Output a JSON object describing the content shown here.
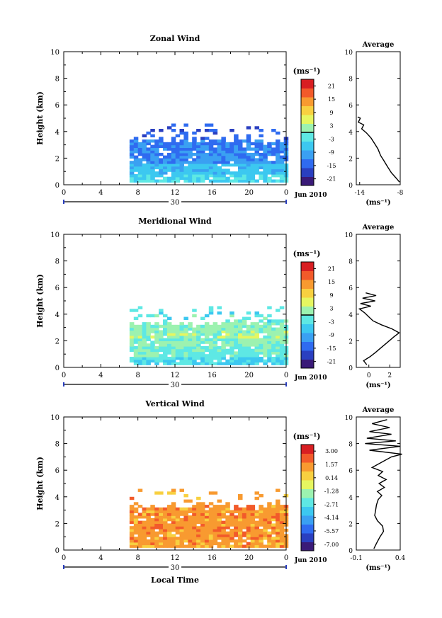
{
  "figure": {
    "xlabel": "Local Time",
    "date_label": "30",
    "month_label": "Jun 2010",
    "ylabel": "Height (km)",
    "unit_label": "(ms⁻¹)"
  },
  "chart_data": [
    {
      "type": "heatmap",
      "title": "Zonal Wind",
      "xlabel": "Local Time",
      "ylabel": "Height (km)",
      "x_ticks": [
        "0",
        "4",
        "8",
        "12",
        "16",
        "20",
        "0"
      ],
      "y_ticks": [
        "0",
        "2",
        "4",
        "6",
        "8",
        "10"
      ],
      "xlim": [
        0,
        24
      ],
      "ylim": [
        0,
        10
      ],
      "colorbar": {
        "unit": "(ms⁻¹)",
        "ticks": [
          "21",
          "15",
          "9",
          "3",
          "-3",
          "-9",
          "-15",
          "-21"
        ],
        "range": [
          -24,
          24
        ],
        "zero_line": 0
      },
      "data_extent": {
        "x": [
          7.1,
          24
        ],
        "y": [
          0.2,
          4.6
        ]
      },
      "value_profile": [
        {
          "h": 0.4,
          "v": -4
        },
        {
          "h": 1.0,
          "v": -7
        },
        {
          "h": 1.8,
          "v": -11
        },
        {
          "h": 2.4,
          "v": -12
        },
        {
          "h": 3.0,
          "v": -13
        },
        {
          "h": 3.6,
          "v": -15
        },
        {
          "h": 4.2,
          "v": -16
        }
      ],
      "average": {
        "title": "Average",
        "xlabel": "(ms⁻¹)",
        "x_ticks": [
          "-14",
          "-8"
        ],
        "xlim": [
          -14.5,
          -8
        ],
        "y_ticks": [
          "0",
          "2",
          "4",
          "6",
          "8",
          "10"
        ],
        "ylim": [
          0,
          10
        ],
        "profile": [
          {
            "h": 0.2,
            "v": -8.1
          },
          {
            "h": 0.5,
            "v": -8.6
          },
          {
            "h": 0.9,
            "v": -9.3
          },
          {
            "h": 1.3,
            "v": -9.8
          },
          {
            "h": 1.8,
            "v": -10.4
          },
          {
            "h": 2.2,
            "v": -10.9
          },
          {
            "h": 2.7,
            "v": -11.3
          },
          {
            "h": 3.1,
            "v": -11.8
          },
          {
            "h": 3.5,
            "v": -12.3
          },
          {
            "h": 3.9,
            "v": -13.0
          },
          {
            "h": 4.2,
            "v": -13.7
          },
          {
            "h": 4.5,
            "v": -13.4
          },
          {
            "h": 4.7,
            "v": -14.2
          },
          {
            "h": 5.0,
            "v": -13.9
          },
          {
            "h": 5.1,
            "v": -14.3
          }
        ]
      }
    },
    {
      "type": "heatmap",
      "title": "Meridional Wind",
      "xlabel": "Local Time",
      "ylabel": "Height (km)",
      "x_ticks": [
        "0",
        "4",
        "8",
        "12",
        "16",
        "20",
        "0"
      ],
      "y_ticks": [
        "0",
        "2",
        "4",
        "6",
        "8",
        "10"
      ],
      "xlim": [
        0,
        24
      ],
      "ylim": [
        0,
        10
      ],
      "colorbar": {
        "unit": "(ms⁻¹)",
        "ticks": [
          "21",
          "15",
          "9",
          "3",
          "-3",
          "-9",
          "-15",
          "-21"
        ],
        "range": [
          -24,
          24
        ],
        "zero_line": 0
      },
      "data_extent": {
        "x": [
          7.1,
          24
        ],
        "y": [
          0.2,
          4.6
        ]
      },
      "value_profile": [
        {
          "h": 0.4,
          "v": -4
        },
        {
          "h": 1.0,
          "v": -1
        },
        {
          "h": 1.8,
          "v": 1
        },
        {
          "h": 2.4,
          "v": 2
        },
        {
          "h": 3.0,
          "v": 1
        },
        {
          "h": 3.6,
          "v": -2
        },
        {
          "h": 4.2,
          "v": -3
        }
      ],
      "average": {
        "title": "Average",
        "xlabel": "(ms⁻¹)",
        "x_ticks": [
          "0",
          "2"
        ],
        "xlim": [
          -1.2,
          3
        ],
        "y_ticks": [
          "0",
          "2",
          "4",
          "6",
          "8",
          "10"
        ],
        "ylim": [
          0,
          10
        ],
        "profile": [
          {
            "h": 0.2,
            "v": -0.2
          },
          {
            "h": 0.5,
            "v": -0.5
          },
          {
            "h": 0.8,
            "v": 0.1
          },
          {
            "h": 1.1,
            "v": 0.6
          },
          {
            "h": 1.5,
            "v": 1.2
          },
          {
            "h": 1.9,
            "v": 1.8
          },
          {
            "h": 2.3,
            "v": 2.4
          },
          {
            "h": 2.6,
            "v": 2.9
          },
          {
            "h": 2.9,
            "v": 2.2
          },
          {
            "h": 3.2,
            "v": 1.2
          },
          {
            "h": 3.5,
            "v": 0.4
          },
          {
            "h": 3.8,
            "v": 0.0
          },
          {
            "h": 4.1,
            "v": -0.4
          },
          {
            "h": 4.4,
            "v": -0.9
          },
          {
            "h": 4.6,
            "v": 0.2
          },
          {
            "h": 4.8,
            "v": -0.8
          },
          {
            "h": 5.0,
            "v": 0.6
          },
          {
            "h": 5.2,
            "v": -0.6
          },
          {
            "h": 5.4,
            "v": 0.7
          },
          {
            "h": 5.6,
            "v": -0.3
          }
        ]
      }
    },
    {
      "type": "heatmap",
      "title": "Vertical Wind",
      "xlabel": "Local Time",
      "ylabel": "Height (km)",
      "x_ticks": [
        "0",
        "4",
        "8",
        "12",
        "16",
        "20",
        "0"
      ],
      "y_ticks": [
        "0",
        "2",
        "4",
        "6",
        "8",
        "10"
      ],
      "xlim": [
        0,
        24
      ],
      "ylim": [
        0,
        10
      ],
      "colorbar": {
        "unit": "(ms⁻¹)",
        "ticks": [
          "3.00",
          "1.57",
          "0.14",
          "-1.28",
          "-2.71",
          "-4.14",
          "-5.57",
          "-7.00"
        ],
        "range": [
          -7.7,
          3.7
        ],
        "zero_line": null
      },
      "data_extent": {
        "x": [
          7.1,
          24
        ],
        "y": [
          0.2,
          4.6
        ]
      },
      "value_profile": [
        {
          "h": 0.4,
          "v": 1.2
        },
        {
          "h": 1.0,
          "v": 1.3
        },
        {
          "h": 1.8,
          "v": 1.5
        },
        {
          "h": 2.4,
          "v": 1.4
        },
        {
          "h": 3.0,
          "v": 1.3
        },
        {
          "h": 3.6,
          "v": 1.2
        },
        {
          "h": 4.2,
          "v": 1.1
        }
      ],
      "average": {
        "title": "Average",
        "xlabel": "(ms⁻¹)",
        "x_ticks": [
          "-0.1",
          "0.4"
        ],
        "xlim": [
          -0.1,
          0.4
        ],
        "y_ticks": [
          "0",
          "2",
          "4",
          "6",
          "8",
          "10"
        ],
        "ylim": [
          0,
          10
        ],
        "profile": [
          {
            "h": 0.1,
            "v": 0.1
          },
          {
            "h": 0.5,
            "v": 0.13
          },
          {
            "h": 1.0,
            "v": 0.17
          },
          {
            "h": 1.4,
            "v": 0.21
          },
          {
            "h": 1.8,
            "v": 0.2
          },
          {
            "h": 2.2,
            "v": 0.14
          },
          {
            "h": 2.6,
            "v": 0.11
          },
          {
            "h": 3.0,
            "v": 0.12
          },
          {
            "h": 3.4,
            "v": 0.13
          },
          {
            "h": 3.8,
            "v": 0.15
          },
          {
            "h": 4.1,
            "v": 0.19
          },
          {
            "h": 4.4,
            "v": 0.14
          },
          {
            "h": 4.7,
            "v": 0.22
          },
          {
            "h": 5.0,
            "v": 0.16
          },
          {
            "h": 5.3,
            "v": 0.24
          },
          {
            "h": 5.6,
            "v": 0.15
          },
          {
            "h": 5.9,
            "v": 0.2
          },
          {
            "h": 6.2,
            "v": 0.08
          },
          {
            "h": 7.0,
            "v": 0.3
          },
          {
            "h": 7.2,
            "v": 0.42
          },
          {
            "h": 7.5,
            "v": 0.05
          },
          {
            "h": 7.8,
            "v": 0.4
          },
          {
            "h": 8.0,
            "v": 0.0
          },
          {
            "h": 8.2,
            "v": 0.35
          },
          {
            "h": 8.4,
            "v": 0.02
          },
          {
            "h": 8.7,
            "v": 0.3
          },
          {
            "h": 8.9,
            "v": 0.05
          },
          {
            "h": 9.2,
            "v": 0.28
          },
          {
            "h": 9.5,
            "v": 0.08
          },
          {
            "h": 9.8,
            "v": 0.25
          }
        ]
      }
    }
  ]
}
